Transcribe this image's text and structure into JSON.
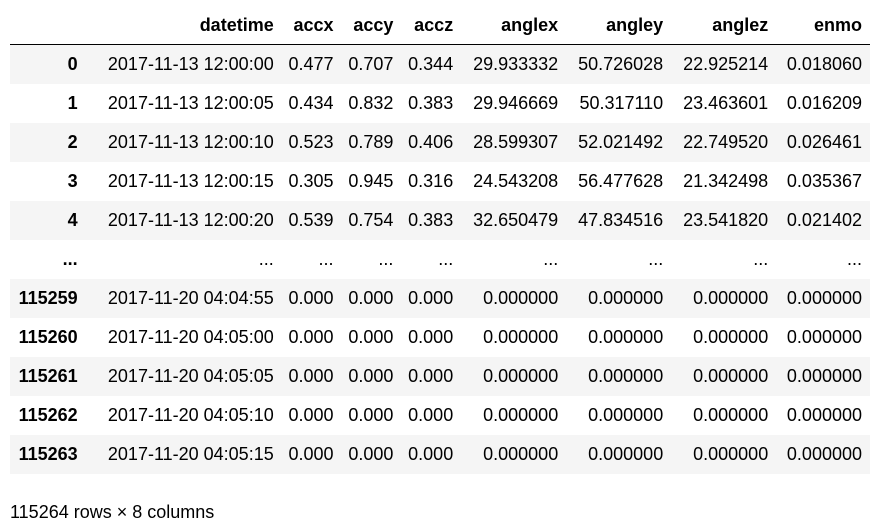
{
  "table": {
    "columns": [
      "",
      "datetime",
      "accx",
      "accy",
      "accz",
      "anglex",
      "angley",
      "anglez",
      "enmo"
    ],
    "rows": [
      [
        "0",
        "2017-11-13 12:00:00",
        "0.477",
        "0.707",
        "0.344",
        "29.933332",
        "50.726028",
        "22.925214",
        "0.018060"
      ],
      [
        "1",
        "2017-11-13 12:00:05",
        "0.434",
        "0.832",
        "0.383",
        "29.946669",
        "50.317110",
        "23.463601",
        "0.016209"
      ],
      [
        "2",
        "2017-11-13 12:00:10",
        "0.523",
        "0.789",
        "0.406",
        "28.599307",
        "52.021492",
        "22.749520",
        "0.026461"
      ],
      [
        "3",
        "2017-11-13 12:00:15",
        "0.305",
        "0.945",
        "0.316",
        "24.543208",
        "56.477628",
        "21.342498",
        "0.035367"
      ],
      [
        "4",
        "2017-11-13 12:00:20",
        "0.539",
        "0.754",
        "0.383",
        "32.650479",
        "47.834516",
        "23.541820",
        "0.021402"
      ],
      [
        "...",
        "...",
        "...",
        "...",
        "...",
        "...",
        "...",
        "...",
        "..."
      ],
      [
        "115259",
        "2017-11-20 04:04:55",
        "0.000",
        "0.000",
        "0.000",
        "0.000000",
        "0.000000",
        "0.000000",
        "0.000000"
      ],
      [
        "115260",
        "2017-11-20 04:05:00",
        "0.000",
        "0.000",
        "0.000",
        "0.000000",
        "0.000000",
        "0.000000",
        "0.000000"
      ],
      [
        "115261",
        "2017-11-20 04:05:05",
        "0.000",
        "0.000",
        "0.000",
        "0.000000",
        "0.000000",
        "0.000000",
        "0.000000"
      ],
      [
        "115262",
        "2017-11-20 04:05:10",
        "0.000",
        "0.000",
        "0.000",
        "0.000000",
        "0.000000",
        "0.000000",
        "0.000000"
      ],
      [
        "115263",
        "2017-11-20 04:05:15",
        "0.000",
        "0.000",
        "0.000",
        "0.000000",
        "0.000000",
        "0.000000",
        "0.000000"
      ]
    ]
  },
  "caption": "115264 rows × 8 columns",
  "colors": {
    "stripe": "#f5f5f5",
    "header_rule": "#000000"
  }
}
